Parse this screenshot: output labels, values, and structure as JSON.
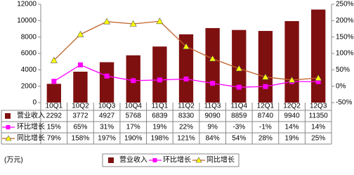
{
  "chart_data": {
    "type": "bar",
    "unit_label": "(万元)",
    "categories": [
      "10Q1",
      "10Q2",
      "10Q3",
      "10Q4",
      "11Q1",
      "11Q2",
      "11Q3",
      "11Q4",
      "12Q1",
      "12Q2",
      "12Q3"
    ],
    "series": [
      {
        "name": "营业收入",
        "type": "bar",
        "color": "#7f1010",
        "values": [
          2292,
          3772,
          4927,
          5768,
          6839,
          8330,
          9090,
          8859,
          8740,
          9940,
          11350
        ]
      },
      {
        "name": "环比增长",
        "type": "line",
        "axis": "y2",
        "color": "#ff00ff",
        "marker": "square",
        "marker_color": "#ff00ff",
        "values": [
          15,
          65,
          31,
          17,
          19,
          22,
          9,
          -3,
          -1,
          14,
          14
        ],
        "value_labels": [
          "15%",
          "65%",
          "31%",
          "17%",
          "19%",
          "22%",
          "9%",
          "-3%",
          "-1%",
          "14%",
          "14%"
        ]
      },
      {
        "name": "同比增长",
        "type": "line",
        "axis": "y2",
        "color": "#c0602a",
        "marker": "triangle",
        "marker_color": "#ffff00",
        "values": [
          79,
          158,
          197,
          190,
          198,
          121,
          84,
          54,
          28,
          19,
          25
        ],
        "value_labels": [
          "79%",
          "158%",
          "197%",
          "190%",
          "198%",
          "121%",
          "84%",
          "54%",
          "28%",
          "19%",
          "25%"
        ]
      }
    ],
    "ylim": [
      0,
      12000
    ],
    "yticks": [
      0,
      2000,
      4000,
      6000,
      8000,
      10000,
      12000
    ],
    "y2lim": [
      -50,
      250
    ],
    "y2ticks": [
      {
        "value": -50,
        "label": "-50%"
      },
      {
        "value": 0,
        "label": "0%"
      },
      {
        "value": 50,
        "label": "50%"
      },
      {
        "value": 100,
        "label": "100%"
      },
      {
        "value": 150,
        "label": "150%"
      },
      {
        "value": 200,
        "label": "200%"
      },
      {
        "value": 250,
        "label": "250%"
      }
    ],
    "grid": false,
    "legend": "bottom"
  }
}
